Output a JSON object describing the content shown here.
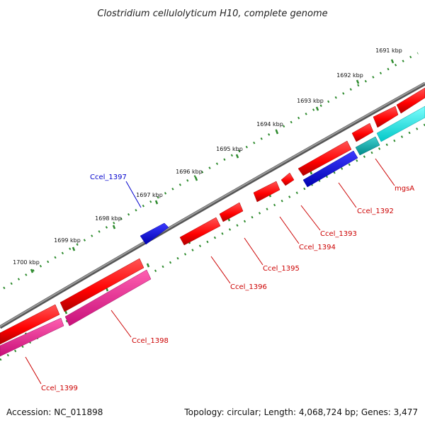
{
  "title": "Clostridium cellulolyticum H10, complete genome",
  "footer": {
    "accession": "Accession: NC_011898",
    "summary": "Topology: circular; Length: 4,068,724 bp; Genes: 3,477"
  },
  "colors": {
    "background": "#ffffff",
    "backbone": "#808080",
    "tick": "#2e8b2e",
    "cds": "#ff0000",
    "cds_dark": "#b00000",
    "gene_blue": "#0000ff",
    "gene_cyan": "#00eeee",
    "gene_pink": "#ff1493",
    "label_red": "#cc0000",
    "label_blue": "#0000cc"
  },
  "kbp_ticks": [
    "1691 kbp",
    "1692 kbp",
    "1693 kbp",
    "1694 kbp",
    "1695 kbp",
    "1696 kbp",
    "1697 kbp",
    "1698 kbp",
    "1699 kbp",
    "1700 kbp"
  ],
  "genes": [
    {
      "label": "mgsA",
      "color": "red"
    },
    {
      "label": "Ccel_1392",
      "color": "red"
    },
    {
      "label": "Ccel_1393",
      "color": "red"
    },
    {
      "label": "Ccel_1394",
      "color": "red"
    },
    {
      "label": "Ccel_1395",
      "color": "red"
    },
    {
      "label": "Ccel_1396",
      "color": "red"
    },
    {
      "label": "Ccel_1397",
      "color": "blue"
    },
    {
      "label": "Ccel_1398",
      "color": "red"
    },
    {
      "label": "Ccel_1399",
      "color": "red"
    }
  ]
}
